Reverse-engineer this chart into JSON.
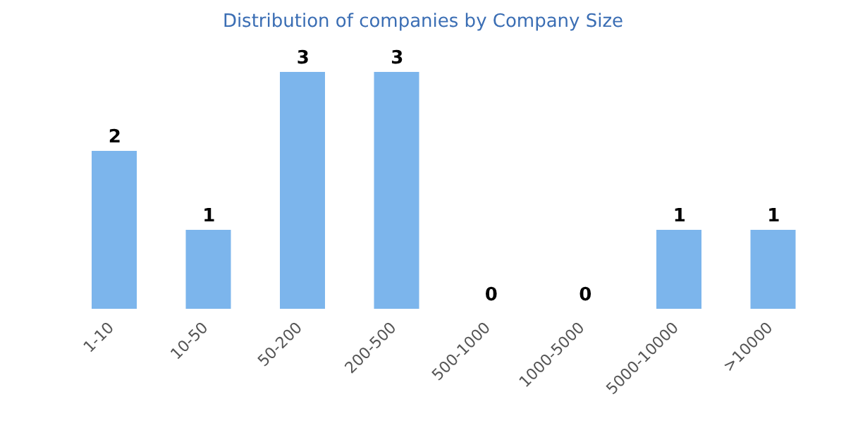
{
  "chart_data": {
    "type": "bar",
    "title": "Distribution of companies by Company Size",
    "categories": [
      "1-10",
      "10-50",
      "50-200",
      "200-500",
      "500-1000",
      "1000-5000",
      "5000-10000",
      ">10000"
    ],
    "values": [
      2,
      1,
      3,
      3,
      0,
      0,
      1,
      1
    ],
    "color": "#7cb5ec",
    "data_labels": true,
    "tick_labels": "x"
  }
}
